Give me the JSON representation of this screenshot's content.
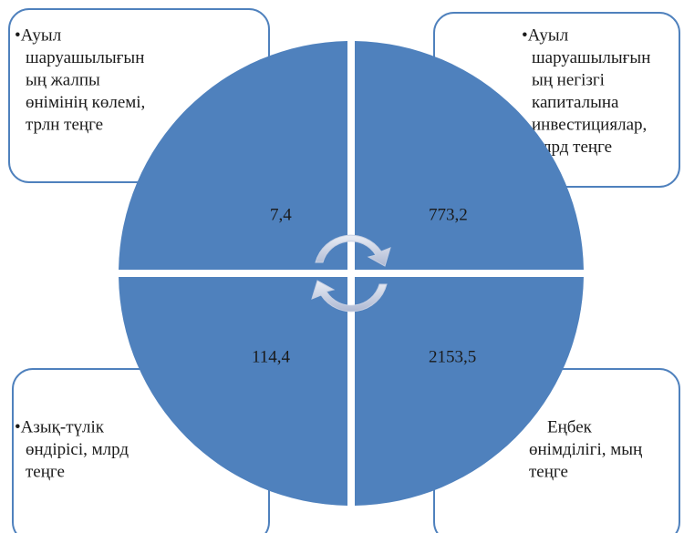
{
  "boxes": [
    {
      "lines": [
        "•Ауыл",
        "шаруашылығын",
        "ың жалпы",
        "өнімінің көлемі,",
        "трлн теңге"
      ],
      "value": "7,4"
    },
    {
      "lines": [
        "•Ауыл",
        "шаруашылығын",
        "ың негізгі",
        "капиталына",
        "инвестициялар,",
        "млрд теңге"
      ],
      "value": "773,2"
    },
    {
      "lines": [
        "•Азық-түлік",
        "өндірісі, млрд",
        "теңге"
      ],
      "value": "114,4"
    },
    {
      "lines": [
        "Еңбек",
        "өнімділігі, мың",
        "теңге"
      ],
      "value": "2153,5"
    }
  ]
}
